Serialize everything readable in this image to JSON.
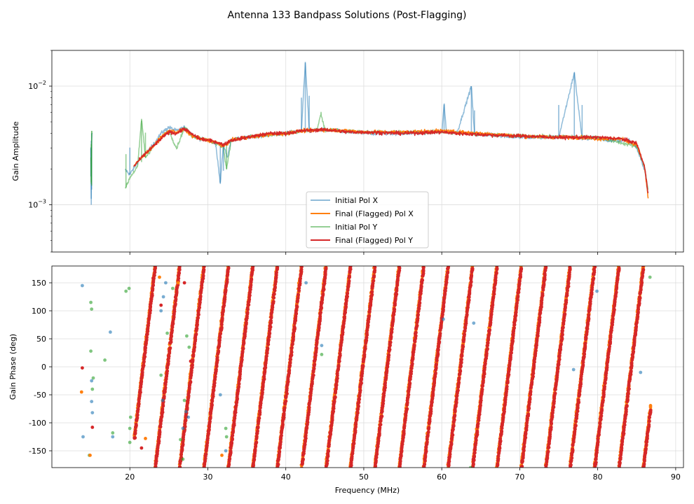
{
  "title": "Antenna 133 Bandpass Solutions (Post-Flagging)",
  "chart_data": [
    {
      "type": "line",
      "panel": "amplitude",
      "ylabel": "Gain Amplitude",
      "yscale": "log",
      "ylim": [
        0.0004,
        0.02
      ],
      "xlim": [
        10,
        91
      ],
      "grid": true,
      "y_ticks": [
        {
          "value": 0.001,
          "base": "10",
          "exp": "−3"
        },
        {
          "value": 0.01,
          "base": "10",
          "exp": "−2"
        }
      ],
      "legend_position": "lower-center",
      "series": [
        {
          "name": "Initial Pol X",
          "color": "#1f77b4",
          "alpha": 0.5,
          "x": [
            15.0,
            15.05,
            15.1,
            20.0,
            21.0,
            22.0,
            23.0,
            24.0,
            25.0,
            26.0,
            27.0,
            28.0,
            29.0,
            30.0,
            31.0,
            31.6,
            32.0,
            32.5,
            33.0,
            35.0,
            38.0,
            40.0,
            42.0,
            42.5,
            43.0,
            45.0,
            48.0,
            50.0,
            55.0,
            60.0,
            60.3,
            60.6,
            62.0,
            63.8,
            64.2,
            66.0,
            70.0,
            75.0,
            77.0,
            78.0,
            80.0,
            81.0,
            84.0,
            85.0,
            86.0,
            86.5
          ],
          "y": [
            0.003,
            0.001,
            0.004,
            0.0018,
            0.0023,
            0.0027,
            0.0032,
            0.004,
            0.0045,
            0.0042,
            0.0045,
            0.0039,
            0.0036,
            0.0035,
            0.0033,
            0.0015,
            0.0033,
            0.0025,
            0.0035,
            0.0037,
            0.0039,
            0.004,
            0.0042,
            0.016,
            0.0042,
            0.0043,
            0.0041,
            0.004,
            0.004,
            0.0041,
            0.007,
            0.0041,
            0.0041,
            0.01,
            0.0039,
            0.0039,
            0.0037,
            0.0037,
            0.013,
            0.0036,
            0.0037,
            0.0035,
            0.0035,
            0.003,
            0.002,
            0.0012
          ]
        },
        {
          "name": "Final (Flagged) Pol X",
          "color": "#ff7f0e",
          "alpha": 1.0,
          "x": [
            20.5,
            21.0,
            22.0,
            23.0,
            24.0,
            25.0,
            26.0,
            27.0,
            28.0,
            29.0,
            30.0,
            31.0,
            32.0,
            33.0,
            35.0,
            38.0,
            40.0,
            42.0,
            45.0,
            48.0,
            50.0,
            55.0,
            60.0,
            62.0,
            65.0,
            70.0,
            75.0,
            78.0,
            80.0,
            83.0,
            85.0,
            86.0,
            86.5
          ],
          "y": [
            0.0021,
            0.0023,
            0.0027,
            0.0031,
            0.0037,
            0.0042,
            0.0041,
            0.0043,
            0.0038,
            0.0036,
            0.0035,
            0.0034,
            0.0031,
            0.0035,
            0.0037,
            0.0039,
            0.004,
            0.0042,
            0.0043,
            0.0042,
            0.0041,
            0.0041,
            0.0042,
            0.0041,
            0.004,
            0.0038,
            0.0037,
            0.0037,
            0.0036,
            0.0036,
            0.0032,
            0.0021,
            0.0011
          ]
        },
        {
          "name": "Initial Pol Y",
          "color": "#2ca02c",
          "alpha": 0.5,
          "x": [
            15.0,
            15.05,
            15.1,
            19.5,
            20.0,
            21.0,
            21.5,
            22.0,
            23.0,
            24.0,
            25.0,
            26.0,
            27.0,
            28.0,
            30.0,
            31.0,
            32.0,
            32.4,
            33.0,
            35.0,
            40.0,
            44.0,
            44.5,
            45.0,
            50.0,
            60.0,
            70.0,
            80.0,
            85.0,
            86.0,
            86.5
          ],
          "y": [
            0.0025,
            0.0015,
            0.0042,
            0.0014,
            0.0017,
            0.0021,
            0.0053,
            0.0025,
            0.0031,
            0.0037,
            0.0042,
            0.003,
            0.0045,
            0.0038,
            0.0035,
            0.0033,
            0.0031,
            0.002,
            0.0035,
            0.0037,
            0.004,
            0.0043,
            0.0058,
            0.0043,
            0.0041,
            0.0041,
            0.0038,
            0.0037,
            0.0031,
            0.0021,
            0.0013
          ]
        },
        {
          "name": "Final (Flagged) Pol Y",
          "color": "#d62728",
          "alpha": 1.0,
          "x": [
            20.5,
            21.0,
            22.0,
            23.0,
            24.0,
            25.0,
            26.0,
            27.0,
            28.0,
            29.0,
            30.0,
            31.0,
            32.0,
            33.0,
            35.0,
            38.0,
            40.0,
            42.0,
            45.0,
            48.0,
            50.0,
            55.0,
            60.0,
            62.0,
            65.0,
            70.0,
            75.0,
            78.0,
            80.0,
            83.0,
            85.0,
            86.0,
            86.5
          ],
          "y": [
            0.0021,
            0.0023,
            0.0027,
            0.0031,
            0.0036,
            0.0041,
            0.004,
            0.0044,
            0.0039,
            0.0036,
            0.0035,
            0.0034,
            0.0032,
            0.0035,
            0.0037,
            0.004,
            0.004,
            0.0042,
            0.0043,
            0.0041,
            0.0041,
            0.004,
            0.0041,
            0.004,
            0.0039,
            0.0038,
            0.0037,
            0.0037,
            0.0037,
            0.0036,
            0.0033,
            0.0021,
            0.0012
          ]
        }
      ]
    },
    {
      "type": "scatter",
      "panel": "phase",
      "xlabel": "Frequency (MHz)",
      "ylabel": "Gain Phase (deg)",
      "xlim": [
        10,
        91
      ],
      "ylim": [
        -180,
        180
      ],
      "grid": true,
      "x_ticks": [
        20,
        30,
        40,
        50,
        60,
        70,
        80,
        90
      ],
      "y_ticks": [
        -150,
        -100,
        -50,
        0,
        50,
        100,
        150
      ],
      "phase_model": {
        "reference_freq_mhz": 20.1,
        "degrees_per_mhz": 115,
        "start_mhz": 20.6,
        "end_mhz": 86.8
      },
      "series": [
        {
          "name": "Initial Pol X",
          "color": "#1f77b4",
          "alpha": 0.6,
          "points": [
            [
              13.9,
              145
            ],
            [
              14.0,
              -125
            ],
            [
              15.1,
              -25
            ],
            [
              15.1,
              -62
            ],
            [
              15.2,
              -82
            ],
            [
              17.5,
              62
            ],
            [
              17.8,
              -125
            ],
            [
              24.0,
              100
            ],
            [
              24.3,
              125
            ],
            [
              24.6,
              150
            ],
            [
              24.2,
              -60
            ],
            [
              26.8,
              -110
            ],
            [
              27.2,
              -80
            ],
            [
              27.5,
              -90
            ],
            [
              31.6,
              -50
            ],
            [
              32.3,
              -150
            ],
            [
              42.6,
              150
            ],
            [
              44.6,
              38
            ],
            [
              60.2,
              85
            ],
            [
              64.1,
              78
            ],
            [
              76.9,
              -5
            ],
            [
              79.9,
              135
            ],
            [
              85.5,
              -10
            ]
          ]
        },
        {
          "name": "Final (Flagged) Pol X",
          "color": "#ff7f0e",
          "alpha": 1.0,
          "points": [
            [
              13.8,
              -45
            ],
            [
              14.9,
              -158
            ],
            [
              22.0,
              -128
            ],
            [
              23.8,
              160
            ],
            [
              26.2,
              150
            ],
            [
              31.8,
              -158
            ]
          ]
        },
        {
          "name": "Initial Pol Y",
          "color": "#2ca02c",
          "alpha": 0.6,
          "points": [
            [
              14.8,
              -158
            ],
            [
              15.0,
              115
            ],
            [
              15.1,
              103
            ],
            [
              15.0,
              28
            ],
            [
              15.2,
              -40
            ],
            [
              15.3,
              -20
            ],
            [
              16.8,
              12
            ],
            [
              17.8,
              -118
            ],
            [
              19.5,
              135
            ],
            [
              19.9,
              140
            ],
            [
              20.1,
              -90
            ],
            [
              20.0,
              -110
            ],
            [
              20.0,
              -135
            ],
            [
              24.0,
              -15
            ],
            [
              24.8,
              60
            ],
            [
              25.5,
              140
            ],
            [
              26.5,
              -130
            ],
            [
              26.8,
              -165
            ],
            [
              27.0,
              -60
            ],
            [
              27.3,
              55
            ],
            [
              27.6,
              35
            ],
            [
              32.3,
              -110
            ],
            [
              32.4,
              -125
            ],
            [
              44.6,
              22
            ],
            [
              63.7,
              -180
            ],
            [
              86.7,
              160
            ]
          ]
        },
        {
          "name": "Final (Flagged) Pol Y",
          "color": "#d62728",
          "alpha": 1.0,
          "points": [
            [
              13.9,
              -2
            ],
            [
              15.2,
              -108
            ],
            [
              21.5,
              -145
            ],
            [
              24.0,
              110
            ],
            [
              27.0,
              150
            ],
            [
              27.8,
              10
            ]
          ]
        }
      ]
    }
  ]
}
